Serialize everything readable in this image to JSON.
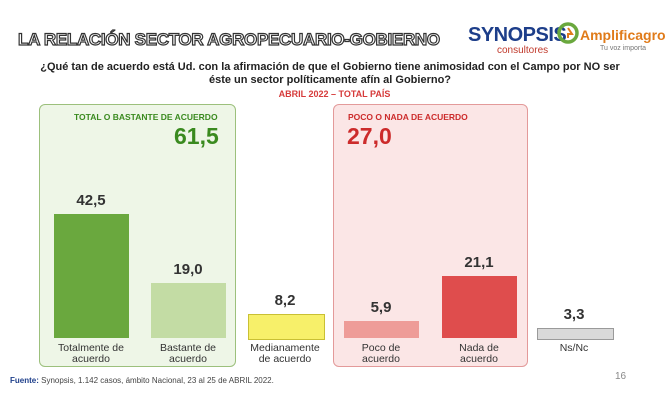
{
  "header": {
    "title": "LA RELACIÓN SECTOR AGROPECUARIO-GOBIERNO"
  },
  "logos": {
    "synopsis": "SYNOPSIS",
    "synopsis_sub": "consultores",
    "amplificagro": "Amplificagro",
    "amplificagro_sub": "Tu voz importa"
  },
  "question": "¿Qué tan de acuerdo está Ud. con la afirmación de que el Gobierno tiene animosidad con el Campo por NO ser éste un sector políticamente afín al Gobierno?",
  "subtitle": "ABRIL 2022 – TOTAL PAÍS",
  "groups": [
    {
      "label": "TOTAL O BASTANTE DE ACUERDO",
      "value": "61,5",
      "color": "#3a8a1f"
    },
    {
      "label": "POCO O NADA DE ACUERDO",
      "value": "27,0",
      "color": "#cc2b2b"
    }
  ],
  "chart_data": {
    "type": "bar",
    "categories": [
      "Totalmente de acuerdo",
      "Bastante de acuerdo",
      "Medianamente de acuerdo",
      "Poco de acuerdo",
      "Nada de acuerdo",
      "Ns/Nc"
    ],
    "values": [
      42.5,
      19.0,
      8.2,
      5.9,
      21.1,
      3.3
    ],
    "value_labels": [
      "42,5",
      "19,0",
      "8,2",
      "5,9",
      "21,1",
      "3,3"
    ],
    "category_lines": [
      [
        "Totalmente de",
        "acuerdo"
      ],
      [
        "Bastante de",
        "acuerdo"
      ],
      [
        "Medianamente",
        "de acuerdo"
      ],
      [
        "Poco de",
        "acuerdo"
      ],
      [
        "Nada de",
        "acuerdo"
      ],
      [
        "Ns/Nc"
      ]
    ],
    "colors": [
      "#6aa83e",
      "#c3dca4",
      "#f7f06a",
      "#ee9c98",
      "#df4d4d",
      "#d9d9d9"
    ],
    "title": "",
    "xlabel": "",
    "ylabel": ""
  },
  "footer": {
    "label": "Fuente:",
    "text": " Synopsis, 1.142 casos, ámbito Nacional, 23 al 25 de ABRIL 2022."
  },
  "page_number": "16"
}
